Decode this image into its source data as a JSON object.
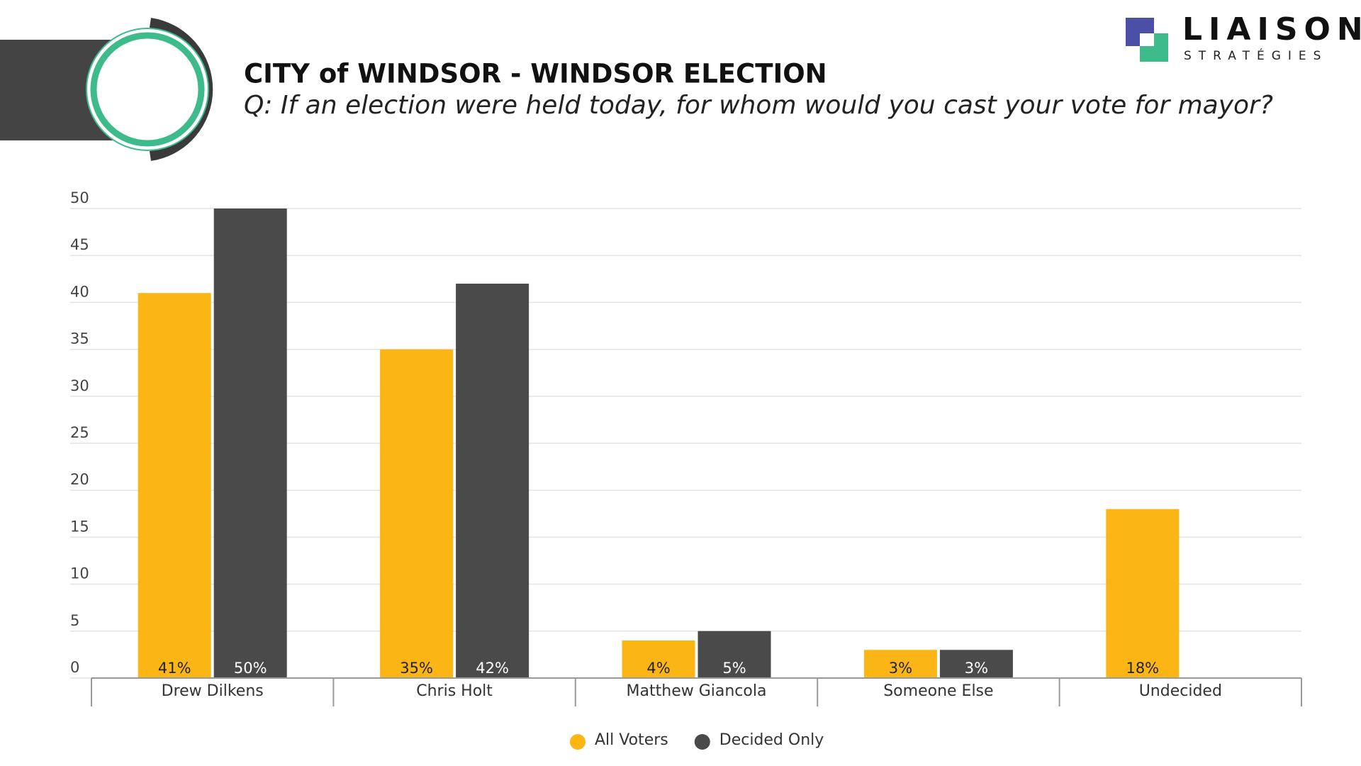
{
  "logo": {
    "name": "LIAISON",
    "tagline": "STRATÉGIES"
  },
  "chart_data": {
    "type": "bar",
    "title": "CITY of WINDSOR - WINDSOR ELECTION",
    "subtitle": "Q: If an election were held today, for whom would you cast your vote for mayor?",
    "categories": [
      "Drew Dilkens",
      "Chris Holt",
      "Matthew Giancola",
      "Someone Else",
      "Undecided"
    ],
    "series": [
      {
        "name": "All Voters",
        "color": "#fbb615",
        "values": [
          41,
          35,
          4,
          3,
          18
        ],
        "value_labels": [
          "41%",
          "35%",
          "4%",
          "3%",
          "18%"
        ]
      },
      {
        "name": "Decided Only",
        "color": "#4a4a4a",
        "values": [
          50,
          42,
          5,
          3,
          null
        ],
        "value_labels": [
          "50%",
          "42%",
          "5%",
          "3%",
          null
        ]
      }
    ],
    "ylim": [
      0,
      50
    ],
    "yticks": [
      0,
      5,
      10,
      15,
      20,
      25,
      30,
      35,
      40,
      45,
      50
    ],
    "grid": true,
    "legend": "bottom"
  }
}
